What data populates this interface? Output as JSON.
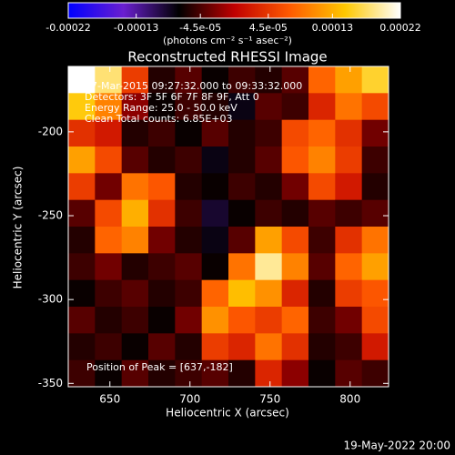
{
  "chart_data": {
    "type": "image",
    "title": "Reconstructed RHESSI Image",
    "xlabel": "Heliocentric X (arcsec)",
    "ylabel": "Heliocentric Y (arcsec)",
    "colorbar_label": "(photons cm⁻² s⁻¹ asec⁻²)",
    "annotations": [
      "17-Mar-2015 09:27:32.000 to 09:33:32.000",
      "Detectors: 3F 5F 6F 7F 8F 9F, Att 0",
      "Energy Range: 25.0 - 50.0 keV",
      "Clean     Total counts: 6.85E+03"
    ],
    "peak_label": "Position of Peak = [637,-182]",
    "footer": "19-May-2022 20:00",
    "xlim": [
      624,
      824
    ],
    "ylim": [
      -352,
      -161
    ],
    "xticks": [
      650,
      700,
      750,
      800
    ],
    "yticks": [
      -200,
      -250,
      -300,
      -350
    ],
    "clim": [
      -0.00022,
      0.00022
    ],
    "cticks": [
      -0.00022,
      -0.00013,
      {
        "value": -4.5e-05,
        "label": "-4.5e-05"
      },
      {
        "value": 4.5e-05,
        "label": "4.5e-05"
      },
      0.00013,
      0.00022
    ],
    "colormap": [
      "#0000ff",
      "#6a1fd0",
      "#000000",
      "#c00000",
      "#ff5a00",
      "#ffc800",
      "#ffffff"
    ],
    "z": [
      [
        0.00022,
        0.00018,
        5e-05,
        -6e-05,
        -4e-05,
        -7e-05,
        -5e-05,
        -6e-05,
        -4e-05,
        8e-05,
        0.00012,
        0.00016
      ],
      [
        0.00015,
        0.0001,
        -2e-05,
        -7e-05,
        -5e-05,
        -6e-05,
        -8e-05,
        -4e-05,
        -5e-05,
        3e-05,
        9e-05,
        6e-05
      ],
      [
        4e-05,
        2e-05,
        -6e-05,
        -5e-05,
        -7e-05,
        -4e-05,
        -6e-05,
        -5e-05,
        6e-05,
        8e-05,
        4e-05,
        -3e-05
      ],
      [
        0.00012,
        6e-05,
        -4e-05,
        -6e-05,
        -5e-05,
        -8e-05,
        -6e-05,
        -4e-05,
        7e-05,
        0.0001,
        5e-05,
        -5e-05
      ],
      [
        5e-05,
        -3e-05,
        9e-05,
        7e-05,
        -6e-05,
        -7e-05,
        -5e-05,
        -6e-05,
        -3e-05,
        6e-05,
        2e-05,
        -6e-05
      ],
      [
        -4e-05,
        6e-05,
        0.00013,
        4e-05,
        -5e-05,
        -9e-05,
        -7e-05,
        -5e-05,
        -6e-05,
        -4e-05,
        -5e-05,
        -4e-05
      ],
      [
        -6e-05,
        8e-05,
        0.0001,
        -3e-05,
        -6e-05,
        -8e-05,
        -4e-05,
        0.00012,
        6e-05,
        -5e-05,
        4e-05,
        9e-05
      ],
      [
        -5e-05,
        -3e-05,
        -6e-05,
        -5e-05,
        -4e-05,
        -7e-05,
        9e-05,
        0.00019,
        0.0001,
        -4e-05,
        8e-05,
        0.00012
      ],
      [
        -7e-05,
        -5e-05,
        -4e-05,
        -6e-05,
        -5e-05,
        8e-05,
        0.00014,
        0.00011,
        3e-05,
        -6e-05,
        5e-05,
        7e-05
      ],
      [
        -4e-05,
        -6e-05,
        -5e-05,
        -7e-05,
        -3e-05,
        0.00011,
        7e-05,
        5e-05,
        8e-05,
        -5e-05,
        -3e-05,
        6e-05
      ],
      [
        -6e-05,
        -5e-05,
        -7e-05,
        -4e-05,
        -6e-05,
        5e-05,
        3e-05,
        9e-05,
        4e-05,
        -6e-05,
        -5e-05,
        2e-05
      ],
      [
        -5e-05,
        -7e-05,
        -4e-05,
        -6e-05,
        -5e-05,
        -4e-05,
        -6e-05,
        3e-05,
        -2e-05,
        -7e-05,
        -4e-05,
        -5e-05
      ]
    ]
  }
}
